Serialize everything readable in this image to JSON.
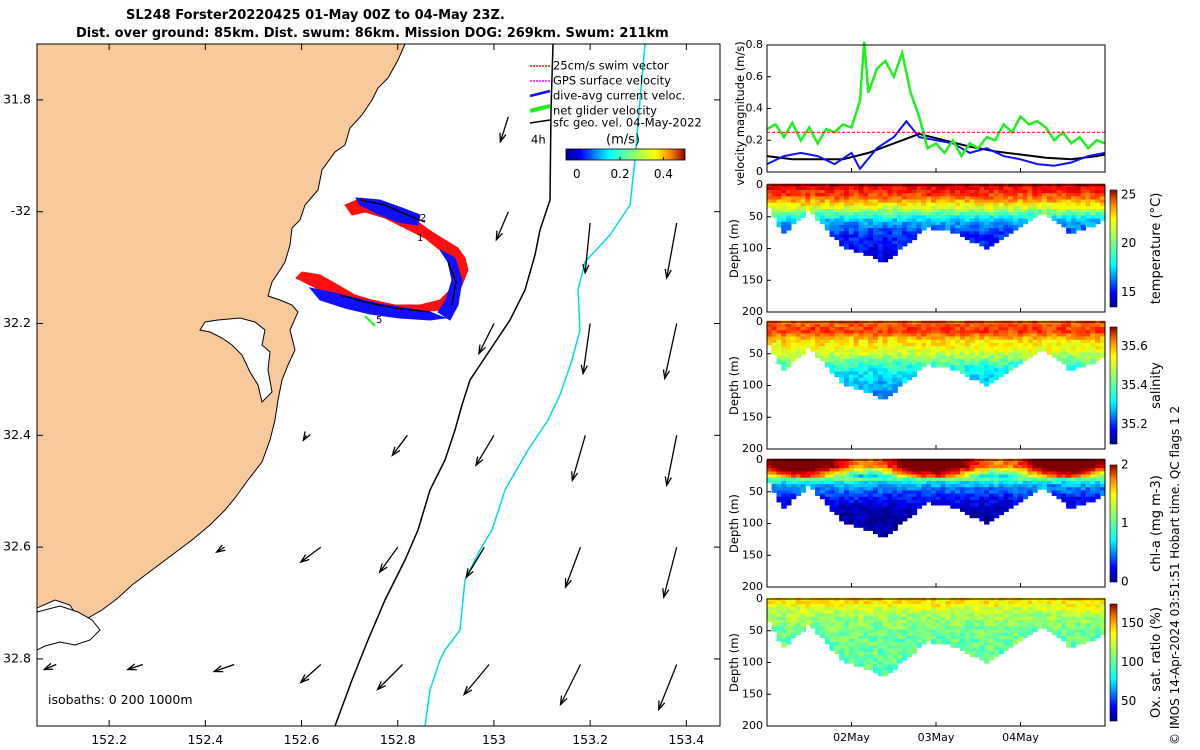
{
  "header": {
    "line1": "SL248 Forster20220425 01-May 00Z to 04-May 23Z.",
    "line2": "Dist. over ground: 85km. Dist. swum: 86km. Mission DOG: 269km. Swum: 211km"
  },
  "side_caption": "© IMOS 14-Apr-2024 03:51:51 Hobart time. QC flags 1  2",
  "colors": {
    "land": "#f8c99a",
    "track": "#1010ff",
    "swim": "#ff1010",
    "net": "#22ee22",
    "isobath_shallow": "#00dddd",
    "isobath_deep": "#000000"
  },
  "chart_data": [
    {
      "type": "map",
      "xlim": [
        152.05,
        153.47
      ],
      "ylim": [
        32.92,
        31.7
      ],
      "xticks": [
        152.2,
        152.4,
        152.6,
        152.8,
        153,
        153.2,
        153.4
      ],
      "xtick_labels": [
        "152.2",
        "152.4",
        "152.6",
        "152.8",
        "153",
        "153.2",
        "153.4"
      ],
      "yticks": [
        31.8,
        32,
        32.2,
        32.4,
        32.6,
        32.8
      ],
      "ytick_labels": [
        "31.8",
        "-32",
        "32.2",
        "32.4",
        "32.6",
        "32.8"
      ],
      "legend": [
        {
          "label": "25cm/s swim vector",
          "color": "#ff1010"
        },
        {
          "label": "GPS surface velocity",
          "color": "#ff00ff"
        },
        {
          "label": "dive-avg current veloc.",
          "color": "#1010ff"
        },
        {
          "label": "net glider velocity",
          "color": "#22ee22"
        },
        {
          "label": "sfc geo. vel. 04-May-2022",
          "color": "#000000"
        }
      ],
      "legend_time": "4h",
      "colorbar": {
        "label": "(m/s)",
        "ticks": [
          0,
          0.2,
          0.4
        ],
        "tick_labels": [
          "0",
          "0.2",
          "0.4"
        ],
        "range": [
          -0.05,
          0.5
        ]
      },
      "isobaths_label": "isobaths: 0   200  1000m",
      "track_markers": [
        "1",
        "2",
        "5"
      ],
      "current_vectors": [
        {
          "lon": 153.03,
          "lat": 31.83,
          "u": 0.08,
          "v": 0.25
        },
        {
          "lon": 153.03,
          "lat": 32.0,
          "u": 0.12,
          "v": 0.28
        },
        {
          "lon": 153.2,
          "lat": 32.02,
          "u": 0.05,
          "v": 0.5
        },
        {
          "lon": 153.38,
          "lat": 32.02,
          "u": 0.1,
          "v": 0.55
        },
        {
          "lon": 153.0,
          "lat": 32.2,
          "u": 0.15,
          "v": 0.3
        },
        {
          "lon": 153.2,
          "lat": 32.2,
          "u": 0.07,
          "v": 0.5
        },
        {
          "lon": 153.38,
          "lat": 32.2,
          "u": 0.12,
          "v": 0.55
        },
        {
          "lon": 152.61,
          "lat": 32.4,
          "u": 0.03,
          "v": 0.05
        },
        {
          "lon": 152.82,
          "lat": 32.4,
          "u": 0.15,
          "v": 0.2
        },
        {
          "lon": 153.0,
          "lat": 32.4,
          "u": 0.18,
          "v": 0.3
        },
        {
          "lon": 153.19,
          "lat": 32.4,
          "u": 0.13,
          "v": 0.45
        },
        {
          "lon": 153.38,
          "lat": 32.4,
          "u": 0.1,
          "v": 0.5
        },
        {
          "lon": 152.44,
          "lat": 32.6,
          "u": 0.08,
          "v": 0.05
        },
        {
          "lon": 152.64,
          "lat": 32.6,
          "u": 0.2,
          "v": 0.15
        },
        {
          "lon": 152.8,
          "lat": 32.6,
          "u": 0.18,
          "v": 0.25
        },
        {
          "lon": 152.98,
          "lat": 32.6,
          "u": 0.18,
          "v": 0.3
        },
        {
          "lon": 153.18,
          "lat": 32.6,
          "u": 0.15,
          "v": 0.4
        },
        {
          "lon": 153.38,
          "lat": 32.6,
          "u": 0.13,
          "v": 0.5
        },
        {
          "lon": 152.09,
          "lat": 32.81,
          "u": 0.12,
          "v": 0.05
        },
        {
          "lon": 152.27,
          "lat": 32.81,
          "u": 0.15,
          "v": 0.05
        },
        {
          "lon": 152.46,
          "lat": 32.81,
          "u": 0.2,
          "v": 0.07
        },
        {
          "lon": 152.64,
          "lat": 32.81,
          "u": 0.2,
          "v": 0.18
        },
        {
          "lon": 152.81,
          "lat": 32.81,
          "u": 0.25,
          "v": 0.25
        },
        {
          "lon": 152.99,
          "lat": 32.81,
          "u": 0.25,
          "v": 0.3
        },
        {
          "lon": 153.18,
          "lat": 32.81,
          "u": 0.2,
          "v": 0.4
        },
        {
          "lon": 153.38,
          "lat": 32.81,
          "u": 0.18,
          "v": 0.45
        }
      ]
    },
    {
      "type": "line",
      "ylabel": "velocity magnitude (m/s)",
      "ylim": [
        0,
        0.8
      ],
      "yticks": [
        0,
        0.2,
        0.4,
        0.6,
        0.8
      ],
      "ytick_labels": [
        "0",
        "0.2",
        "0.4",
        "0.6",
        "0.8"
      ],
      "xlim": [
        0,
        4
      ],
      "swim_level": 0.25,
      "series": [
        {
          "name": "geostrophic",
          "color": "#000000",
          "x": [
            0,
            0.3,
            0.6,
            0.9,
            1.2,
            1.5,
            1.8,
            2.1,
            2.4,
            2.7,
            3.0,
            3.3,
            3.6,
            3.9,
            4.0
          ],
          "y": [
            0.1,
            0.08,
            0.08,
            0.08,
            0.12,
            0.18,
            0.24,
            0.2,
            0.16,
            0.13,
            0.11,
            0.09,
            0.08,
            0.1,
            0.11
          ]
        },
        {
          "name": "dive-avg current",
          "color": "#1010ff",
          "x": [
            0,
            0.2,
            0.4,
            0.6,
            0.8,
            1.0,
            1.1,
            1.3,
            1.5,
            1.65,
            1.8,
            2.0,
            2.2,
            2.4,
            2.6,
            2.8,
            3.0,
            3.2,
            3.4,
            3.6,
            3.8,
            4.0
          ],
          "y": [
            0.05,
            0.1,
            0.12,
            0.1,
            0.05,
            0.12,
            0.02,
            0.15,
            0.22,
            0.32,
            0.22,
            0.2,
            0.18,
            0.12,
            0.15,
            0.1,
            0.08,
            0.05,
            0.04,
            0.06,
            0.1,
            0.12
          ]
        },
        {
          "name": "net glider velocity",
          "color": "#22ee22",
          "x": [
            0,
            0.1,
            0.2,
            0.3,
            0.4,
            0.5,
            0.6,
            0.7,
            0.8,
            0.9,
            1.0,
            1.1,
            1.15,
            1.2,
            1.3,
            1.4,
            1.5,
            1.6,
            1.7,
            1.8,
            1.9,
            2.0,
            2.1,
            2.2,
            2.3,
            2.4,
            2.5,
            2.6,
            2.7,
            2.8,
            2.9,
            3.0,
            3.1,
            3.2,
            3.3,
            3.4,
            3.5,
            3.6,
            3.7,
            3.8,
            3.9,
            4.0
          ],
          "y": [
            0.27,
            0.3,
            0.22,
            0.31,
            0.2,
            0.28,
            0.18,
            0.27,
            0.25,
            0.3,
            0.28,
            0.45,
            0.82,
            0.5,
            0.65,
            0.7,
            0.6,
            0.75,
            0.5,
            0.35,
            0.15,
            0.18,
            0.12,
            0.2,
            0.1,
            0.18,
            0.15,
            0.22,
            0.2,
            0.3,
            0.25,
            0.35,
            0.3,
            0.32,
            0.28,
            0.2,
            0.25,
            0.18,
            0.22,
            0.15,
            0.2,
            0.18
          ]
        }
      ]
    },
    {
      "type": "heatmap",
      "variable": "temperature",
      "clabel": "temperature (°C)",
      "cbar_ticks": [
        15,
        20,
        25
      ],
      "cbar_tick_labels": [
        "15",
        "20",
        "25"
      ],
      "crange": [
        13.5,
        25.5
      ],
      "ylabel": "Depth (m)",
      "ylim": [
        0,
        200
      ],
      "yticks": [
        0,
        50,
        100,
        150,
        200
      ],
      "ytick_labels": [
        "0",
        "50",
        "100",
        "150",
        "200"
      ],
      "bottom_depth": [
        [
          0,
          30
        ],
        [
          0.2,
          75
        ],
        [
          0.5,
          40
        ],
        [
          0.9,
          95
        ],
        [
          1.4,
          120
        ],
        [
          1.9,
          65
        ],
        [
          2.25,
          75
        ],
        [
          2.6,
          100
        ],
        [
          2.95,
          70
        ],
        [
          3.25,
          40
        ],
        [
          3.6,
          75
        ],
        [
          4,
          55
        ]
      ],
      "profile": {
        "depth": [
          0,
          20,
          40,
          60,
          80,
          100,
          125
        ],
        "value": [
          24.5,
          23,
          20,
          17,
          15.5,
          15,
          14.5
        ]
      }
    },
    {
      "type": "heatmap",
      "variable": "salinity",
      "clabel": "salinity",
      "cbar_ticks": [
        35.2,
        35.4,
        35.6
      ],
      "cbar_tick_labels": [
        "35.2",
        "35.4",
        "35.6"
      ],
      "crange": [
        35.1,
        35.7
      ],
      "ylabel": "Depth (m)",
      "ylim": [
        0,
        200
      ],
      "yticks": [
        0,
        50,
        100,
        150,
        200
      ],
      "ytick_labels": [
        "0",
        "50",
        "100",
        "150",
        "200"
      ],
      "bottom_depth": [
        [
          0,
          30
        ],
        [
          0.2,
          75
        ],
        [
          0.5,
          40
        ],
        [
          0.9,
          95
        ],
        [
          1.4,
          120
        ],
        [
          1.9,
          65
        ],
        [
          2.25,
          75
        ],
        [
          2.6,
          100
        ],
        [
          2.95,
          70
        ],
        [
          3.25,
          40
        ],
        [
          3.6,
          75
        ],
        [
          4,
          55
        ]
      ],
      "profile": {
        "depth": [
          0,
          15,
          30,
          50,
          70,
          90,
          120
        ],
        "value": [
          35.55,
          35.6,
          35.5,
          35.45,
          35.35,
          35.3,
          35.25
        ]
      }
    },
    {
      "type": "heatmap",
      "variable": "chl-a",
      "clabel": "chl-a (mg m-3)",
      "cbar_ticks": [
        0,
        1,
        2
      ],
      "cbar_tick_labels": [
        "0",
        "1",
        "2"
      ],
      "crange": [
        0,
        2
      ],
      "ylabel": "Depth (m)",
      "ylim": [
        0,
        200
      ],
      "yticks": [
        0,
        50,
        100,
        150,
        200
      ],
      "ytick_labels": [
        "0",
        "50",
        "100",
        "150",
        "200"
      ],
      "bottom_depth": [
        [
          0,
          30
        ],
        [
          0.2,
          75
        ],
        [
          0.5,
          40
        ],
        [
          0.9,
          95
        ],
        [
          1.4,
          120
        ],
        [
          1.9,
          65
        ],
        [
          2.25,
          75
        ],
        [
          2.6,
          100
        ],
        [
          2.95,
          70
        ],
        [
          3.25,
          40
        ],
        [
          3.6,
          75
        ],
        [
          4,
          55
        ]
      ],
      "profile": {
        "depth": [
          0,
          10,
          20,
          30,
          40,
          60,
          80,
          120
        ],
        "value": [
          1.9,
          2,
          1.5,
          1.0,
          0.6,
          0.3,
          0.1,
          0.05
        ]
      }
    },
    {
      "type": "heatmap",
      "variable": "oxygen",
      "clabel": "Ox. sat. ratio (%)",
      "cbar_ticks": [
        50,
        100,
        150
      ],
      "cbar_tick_labels": [
        "50",
        "100",
        "150"
      ],
      "crange": [
        25,
        175
      ],
      "ylabel": "Depth (m)",
      "ylim": [
        0,
        200
      ],
      "yticks": [
        0,
        50,
        100,
        150,
        200
      ],
      "ytick_labels": [
        "0",
        "50",
        "100",
        "150",
        "200"
      ],
      "xticks": [
        1,
        2,
        3
      ],
      "xtick_labels": [
        "02May",
        "03May",
        "04May"
      ],
      "bottom_depth": [
        [
          0,
          30
        ],
        [
          0.2,
          75
        ],
        [
          0.5,
          40
        ],
        [
          0.9,
          95
        ],
        [
          1.4,
          120
        ],
        [
          1.9,
          65
        ],
        [
          2.25,
          75
        ],
        [
          2.6,
          100
        ],
        [
          2.95,
          70
        ],
        [
          3.25,
          40
        ],
        [
          3.6,
          75
        ],
        [
          4,
          55
        ]
      ],
      "profile": {
        "depth": [
          0,
          10,
          20,
          35,
          60,
          100,
          125
        ],
        "value": [
          125,
          120,
          110,
          102,
          97,
          95,
          94
        ]
      }
    }
  ]
}
